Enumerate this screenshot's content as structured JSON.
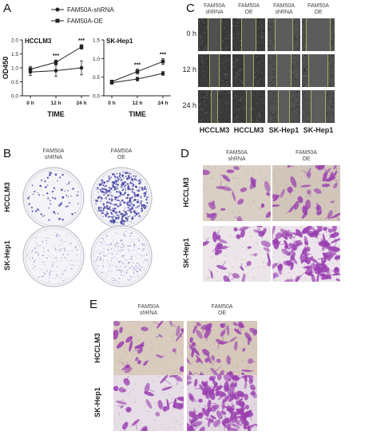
{
  "panels": {
    "a": {
      "label": "A"
    },
    "b": {
      "label": "B"
    },
    "c": {
      "label": "C"
    },
    "d": {
      "label": "D"
    },
    "e": {
      "label": "E"
    }
  },
  "legend": {
    "items": [
      {
        "name": "FAM50A-shRNA",
        "marker": "circle"
      },
      {
        "name": "FAM50A-OE",
        "marker": "square"
      }
    ]
  },
  "chart_data": [
    {
      "type": "line",
      "title": "HCCLM3",
      "xlabel": "TIME",
      "ylabel": "OD450",
      "categories": [
        "0 h",
        "12 h",
        "24 h"
      ],
      "ylim": [
        0.0,
        2.0
      ],
      "yticks": [
        "0.0",
        "0.5",
        "1.0",
        "1.5",
        "2.0"
      ],
      "series": [
        {
          "name": "FAM50A-shRNA",
          "values": [
            0.85,
            0.9,
            1.0
          ],
          "errors": [
            0.12,
            0.2,
            0.25
          ]
        },
        {
          "name": "FAM50A-OE",
          "values": [
            0.95,
            1.2,
            1.75
          ],
          "errors": [
            0.1,
            0.08,
            0.08
          ]
        }
      ],
      "significance": [
        "",
        "***",
        "***"
      ]
    },
    {
      "type": "line",
      "title": "SK-Hep1",
      "xlabel": "TIME",
      "ylabel": "",
      "categories": [
        "0 h",
        "12 h",
        "24 h"
      ],
      "ylim": [
        0.0,
        1.5
      ],
      "yticks": [
        "0.0",
        "0.5",
        "1.0",
        "1.5"
      ],
      "series": [
        {
          "name": "FAM50A-shRNA",
          "values": [
            0.35,
            0.45,
            0.6
          ],
          "errors": [
            0.04,
            0.05,
            0.05
          ]
        },
        {
          "name": "FAM50A-OE",
          "values": [
            0.38,
            0.65,
            0.92
          ],
          "errors": [
            0.04,
            0.07,
            0.08
          ]
        }
      ],
      "significance": [
        "",
        "***",
        "***"
      ]
    }
  ],
  "panel_c": {
    "columns": [
      {
        "line1": "FAM50A",
        "line2": "shRNA"
      },
      {
        "line1": "FAM50A",
        "line2": "OE"
      },
      {
        "line1": "FAM50A",
        "line2": "shRNA"
      },
      {
        "line1": "FAM50A",
        "line2": "OE"
      }
    ],
    "rows": [
      "0 h",
      "12 h",
      "24 h"
    ],
    "footer": [
      "HCCLM3",
      "HCCLM3",
      "SK-Hep1",
      "SK-Hep1"
    ]
  },
  "panel_b": {
    "columns": [
      {
        "line1": "FAM50A",
        "line2": "shRNA"
      },
      {
        "line1": "FAM50A",
        "line2": "OE"
      }
    ],
    "rows": [
      "HCCLM3",
      "SK-Hep1"
    ]
  },
  "panel_d": {
    "columns": [
      {
        "line1": "FAM50A",
        "line2": "shRNA"
      },
      {
        "line1": "FAM50A",
        "line2": "OE"
      }
    ],
    "rows": [
      "HCCLM3",
      "SK-Hep1"
    ]
  },
  "panel_e": {
    "columns": [
      {
        "line1": "FAM50A",
        "line2": "shRNA"
      },
      {
        "line1": "FAM50A",
        "line2": "OE"
      }
    ],
    "rows": [
      "HCCLM3",
      "SK-Hep1"
    ]
  },
  "colors": {
    "stain": "#9a3fb0",
    "dish": "#4a4aa8",
    "scratch_line": "#c8d86a"
  }
}
